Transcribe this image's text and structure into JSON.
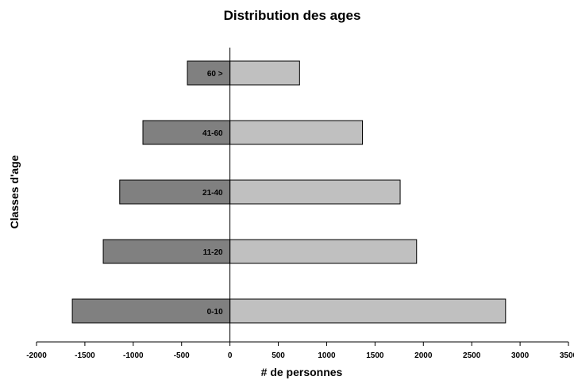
{
  "chart_data": {
    "type": "bar",
    "orientation": "horizontal",
    "title": "Distribution des ages",
    "xlabel": "# de personnes",
    "ylabel": "Classes d'age",
    "xlim": [
      -2000,
      3500
    ],
    "xticks": [
      -2000,
      -1500,
      -1000,
      -500,
      0,
      500,
      1000,
      1500,
      2000,
      2500,
      3000,
      3500
    ],
    "categories": [
      "60 >",
      "41-60",
      "21-40",
      "11-20",
      "0-10"
    ],
    "series": [
      {
        "values": [
          -440,
          -900,
          -1140,
          -1310,
          -1630
        ],
        "color": "#808080"
      },
      {
        "values": [
          720,
          1370,
          1760,
          1930,
          2850
        ],
        "color": "#c0c0c0"
      }
    ],
    "grid": false,
    "legend": "none"
  }
}
